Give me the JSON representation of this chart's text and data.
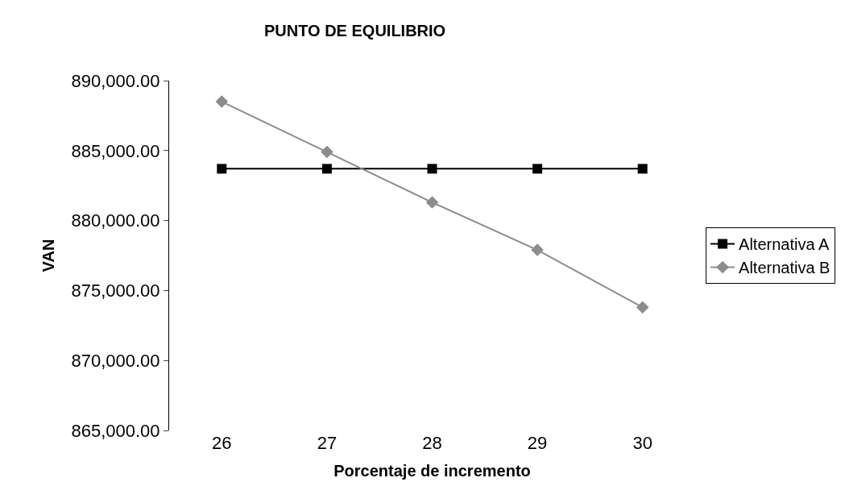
{
  "chart_data": {
    "type": "line",
    "title": "PUNTO DE EQUILIBRIO",
    "xlabel": "Porcentaje de incremento",
    "ylabel": "VAN",
    "categories": [
      "26",
      "27",
      "28",
      "29",
      "30"
    ],
    "series": [
      {
        "name": "Alternativa A",
        "color": "#000000",
        "marker": "square",
        "values": [
          883700,
          883700,
          883700,
          883700,
          883700
        ]
      },
      {
        "name": "Alternativa B",
        "color": "#8c8c8c",
        "marker": "diamond",
        "values": [
          888500,
          884900,
          881300,
          877900,
          873800
        ]
      }
    ],
    "ylim": [
      865000,
      890000
    ],
    "yticks": [
      {
        "value": 865000,
        "label": "865,000.00"
      },
      {
        "value": 870000,
        "label": "870,000.00"
      },
      {
        "value": 875000,
        "label": "875,000.00"
      },
      {
        "value": 880000,
        "label": "880,000.00"
      },
      {
        "value": 885000,
        "label": "885,000.00"
      },
      {
        "value": 890000,
        "label": "890,000.00"
      }
    ],
    "legend": "right",
    "line_style": "solid"
  }
}
